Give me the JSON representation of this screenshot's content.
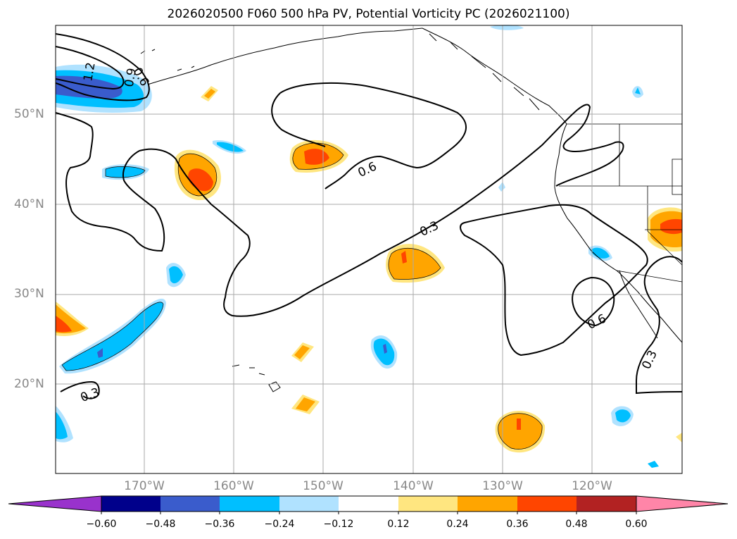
{
  "title": "2026020500 F060 500 hPa PV, Potential Vorticity PC (2026021100)",
  "lat_labels": [
    "50°N",
    "40°N",
    "30°N",
    "20°N"
  ],
  "lon_labels": [
    "170°W",
    "160°W",
    "150°W",
    "140°W",
    "130°W",
    "120°W"
  ],
  "contour_labels": [
    "1.2",
    "0.9",
    "0.6",
    "0.6",
    "0.3",
    "0.6",
    "0.3",
    "0.3"
  ],
  "colorbar": {
    "ticks": [
      "−0.60",
      "−0.48",
      "−0.36",
      "−0.24",
      "−0.12",
      "0.12",
      "0.24",
      "0.36",
      "0.48",
      "0.60"
    ],
    "colors": [
      "#9932cc",
      "#00008b",
      "#3a5ccc",
      "#00bfff",
      "#b0e2ff",
      "#ffffff",
      "#ffe680",
      "#ffa500",
      "#ff4500",
      "#b22222",
      "#ff85a8"
    ]
  },
  "colors": {
    "neg_dark": "#3a5ccc",
    "neg_mid": "#00bfff",
    "neg_light": "#b0e2ff",
    "pos_light": "#ffe680",
    "pos_mid": "#ffa500",
    "pos_dark": "#ff4500",
    "grid": "#aaaaaa",
    "axis_label": "#888888"
  }
}
